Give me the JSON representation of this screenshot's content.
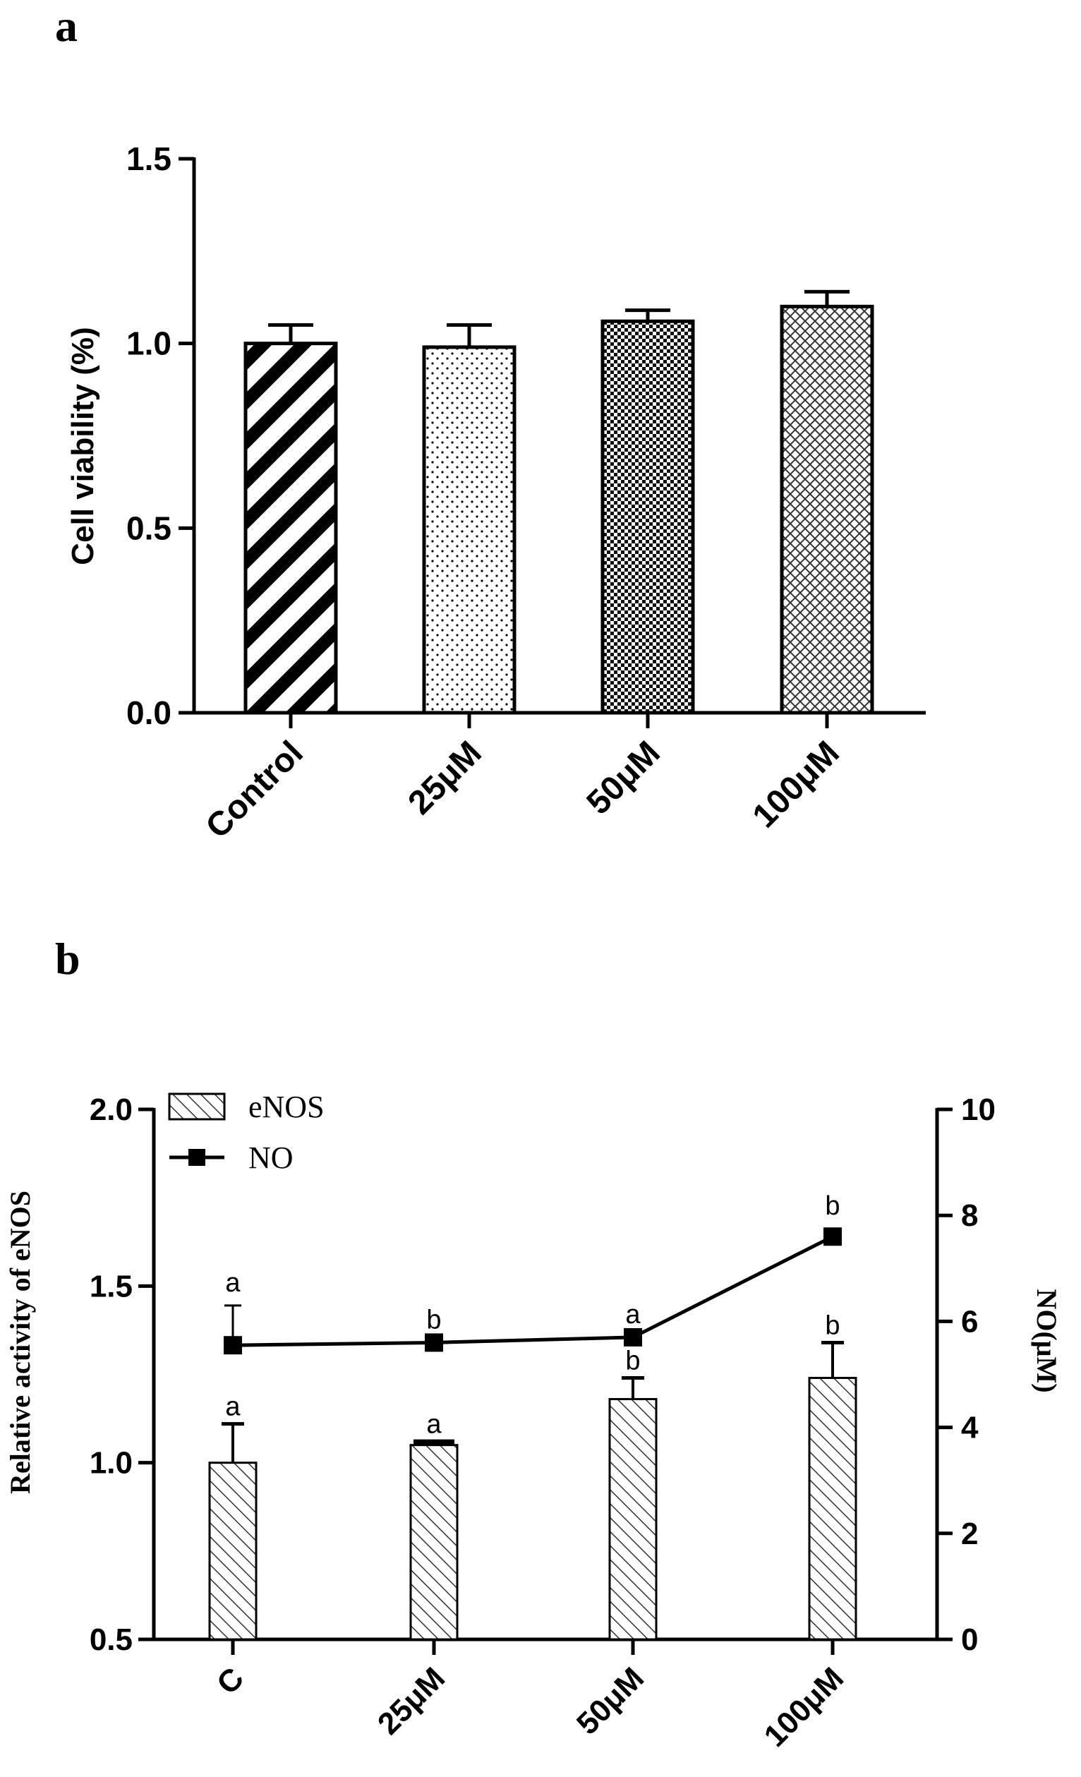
{
  "chart_data": [
    {
      "panel": "a",
      "type": "bar",
      "categories": [
        "Control",
        "25μM",
        "50μM",
        "100μM"
      ],
      "values": [
        1.0,
        0.99,
        1.06,
        1.1
      ],
      "errors": [
        0.05,
        0.06,
        0.03,
        0.04
      ],
      "patterns": [
        "diagonal-stripes",
        "dots",
        "checker",
        "crosshatch"
      ],
      "ylabel": "Cell viability (%)",
      "xlabel": "",
      "ylim": [
        0,
        1.5
      ],
      "yticks": [
        "0.0",
        "0.5",
        "1.0",
        "1.5"
      ],
      "ytick_values": [
        0,
        0.5,
        1.0,
        1.5
      ]
    },
    {
      "panel": "b",
      "type": "bar+line",
      "categories": [
        "C",
        "25μM",
        "50μM",
        "100μM"
      ],
      "series": [
        {
          "name": "eNOS",
          "kind": "bar",
          "axis": "left",
          "values": [
            1.0,
            1.05,
            1.18,
            1.24
          ],
          "errors": [
            0.11,
            0.01,
            0.06,
            0.1
          ],
          "labels": [
            "a",
            "a",
            "b",
            "b"
          ]
        },
        {
          "name": "NO",
          "kind": "line",
          "axis": "right",
          "values": [
            5.55,
            5.6,
            5.7,
            7.6
          ],
          "errors": [
            0.75,
            0.0,
            0.0,
            0.15
          ],
          "labels": [
            "a",
            "b",
            "a",
            "b"
          ]
        }
      ],
      "ylabel": "Relative activity of eNOS",
      "y2label": "NO(μM)",
      "ylim": [
        0.5,
        2.0
      ],
      "y2lim": [
        0,
        10
      ],
      "yticks": [
        "0.5",
        "1.0",
        "1.5",
        "2.0"
      ],
      "ytick_values": [
        0.5,
        1.0,
        1.5,
        2.0
      ],
      "y2ticks": [
        "0",
        "2",
        "4",
        "6",
        "8",
        "10"
      ],
      "y2tick_values": [
        0,
        2,
        4,
        6,
        8,
        10
      ],
      "legend_position": "top-left"
    }
  ],
  "panel_a_label": "a",
  "panel_b_label": "b"
}
